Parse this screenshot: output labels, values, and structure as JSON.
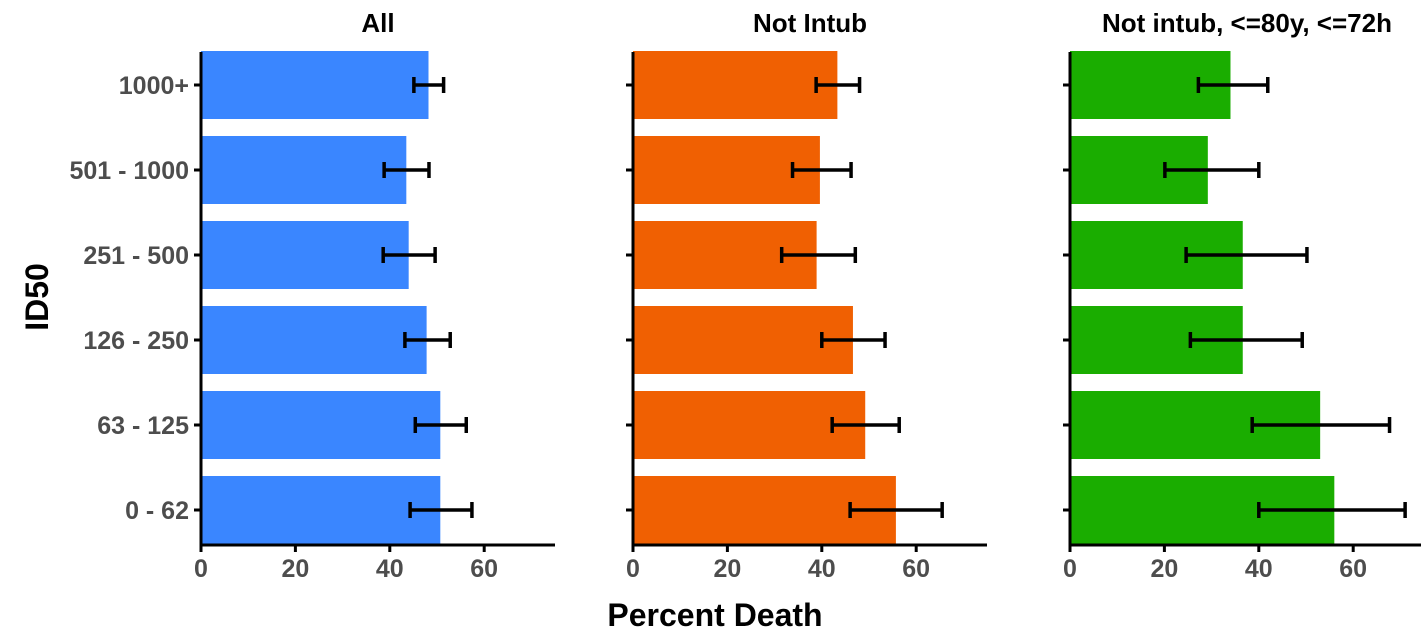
{
  "chart_data": {
    "type": "bar",
    "orientation": "horizontal",
    "xlabel": "Percent Death",
    "ylabel": "ID50",
    "categories": [
      "1000+",
      "501 - 1000",
      "251 - 500",
      "126 - 250",
      "63 - 125",
      "0 - 62"
    ],
    "xlim": [
      0,
      75
    ],
    "x_ticks": [
      0,
      20,
      40,
      60
    ],
    "x_tick_labels": [
      "0",
      "20",
      "40",
      "60"
    ],
    "grid": false,
    "legend": "none",
    "error_bars": true,
    "panels": [
      {
        "title": "All",
        "color": "#3a86ff",
        "values": [
          48.2,
          43.5,
          44.0,
          47.8,
          50.7,
          50.7
        ],
        "err_low": [
          45.1,
          38.8,
          38.6,
          43.2,
          45.4,
          44.3
        ],
        "err_high": [
          51.4,
          48.3,
          49.6,
          52.8,
          56.2,
          57.4
        ]
      },
      {
        "title": "Not Intub",
        "color": "#f06002",
        "values": [
          43.3,
          39.6,
          38.9,
          46.6,
          49.2,
          55.7
        ],
        "err_low": [
          38.8,
          33.8,
          31.5,
          40.0,
          42.2,
          46.0
        ],
        "err_high": [
          48.0,
          46.2,
          47.1,
          53.4,
          56.4,
          65.5
        ]
      },
      {
        "title": "Not intub, <=80y, <=72h",
        "color": "#1aad00",
        "values": [
          34.0,
          29.2,
          36.6,
          36.6,
          53.0,
          56.0
        ],
        "err_low": [
          27.2,
          20.1,
          24.6,
          25.5,
          38.6,
          40.0
        ],
        "err_high": [
          41.9,
          40.0,
          50.2,
          49.2,
          67.7,
          71.0
        ]
      }
    ]
  }
}
